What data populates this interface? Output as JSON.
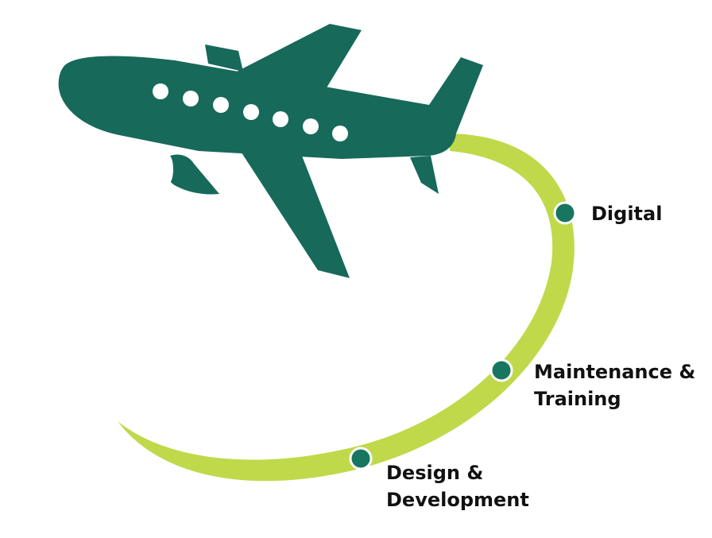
{
  "colors": {
    "airplane": "#17695a",
    "flight_path": "#bfd94a",
    "milestone_dot": "#17765f",
    "label_text": "#111111",
    "background": "#ffffff"
  },
  "milestones": [
    {
      "lines": [
        "Digital"
      ]
    },
    {
      "lines": [
        "Maintenance &",
        "Training"
      ]
    },
    {
      "lines": [
        "Design &",
        "Development"
      ]
    }
  ]
}
